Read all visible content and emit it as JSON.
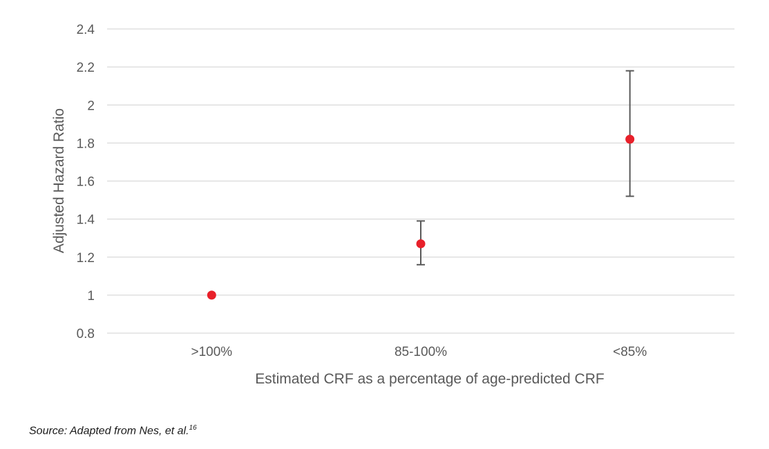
{
  "chart_data": {
    "type": "scatter",
    "xlabel": "Estimated CRF as a percentage of age-predicted CRF",
    "ylabel": "Adjusted Hazard Ratio",
    "categories": [
      ">100%",
      "85-100%",
      "<85%"
    ],
    "values": [
      1.0,
      1.27,
      1.82
    ],
    "ci_low": [
      null,
      1.16,
      1.52
    ],
    "ci_high": [
      null,
      1.39,
      2.18
    ],
    "ylim": [
      0.8,
      2.4
    ],
    "yticks": [
      0.8,
      1,
      1.2,
      1.4,
      1.6,
      1.8,
      2,
      2.2,
      2.4
    ],
    "ytick_labels": [
      "0.8",
      "1",
      "1.2",
      "1.4",
      "1.6",
      "1.8",
      "2",
      "2.2",
      "2.4"
    ],
    "grid": true,
    "legend": "none",
    "marker_color": "#e8202a",
    "errorbar_color": "#595959"
  },
  "source": {
    "text": "Source: Adapted from Nes, et al.",
    "superscript": "16"
  }
}
